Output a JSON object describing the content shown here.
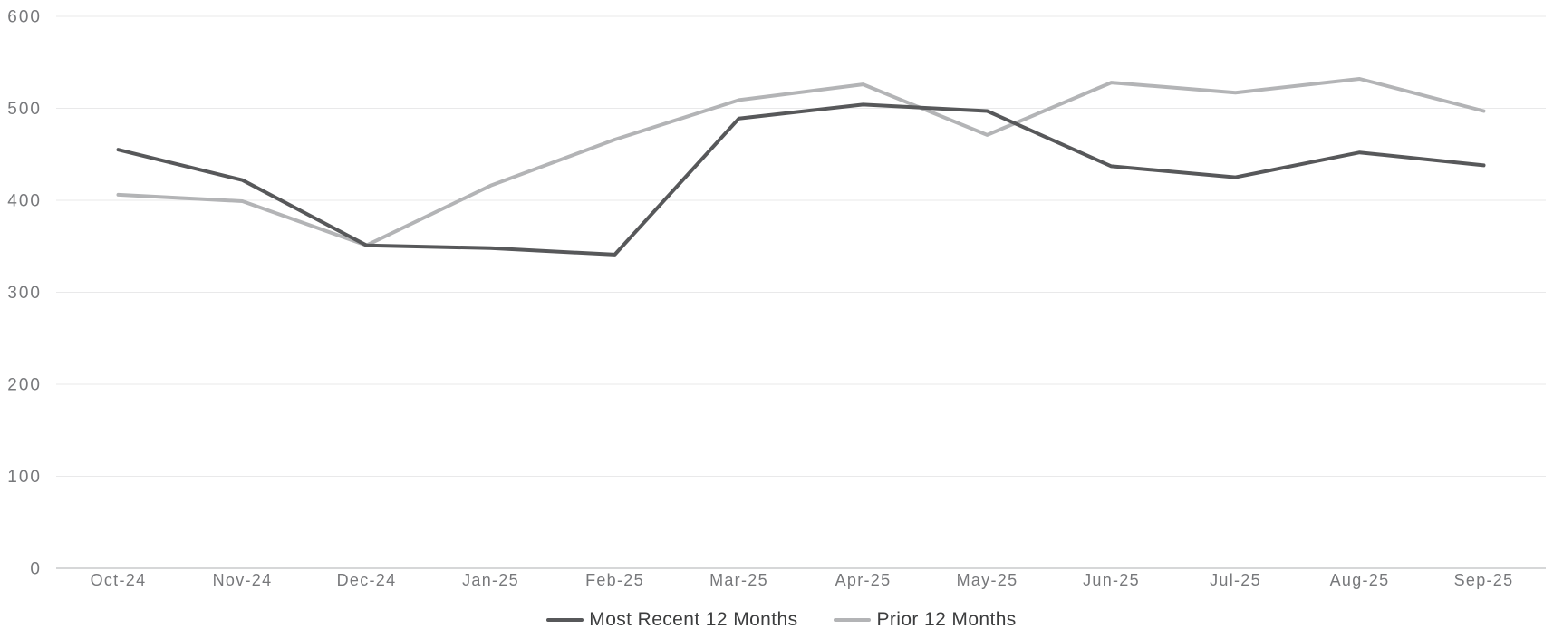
{
  "chart_data": {
    "type": "line",
    "title": "",
    "xlabel": "",
    "ylabel": "",
    "categories": [
      "Oct-24",
      "Nov-24",
      "Dec-24",
      "Jan-25",
      "Feb-25",
      "Mar-25",
      "Apr-25",
      "May-25",
      "Jun-25",
      "Jul-25",
      "Aug-25",
      "Sep-25"
    ],
    "series": [
      {
        "name": "Most Recent 12 Months",
        "color": "#57585a",
        "values": [
          455,
          422,
          351,
          348,
          341,
          489,
          504,
          497,
          437,
          425,
          452,
          438
        ]
      },
      {
        "name": "Prior 12 Months",
        "color": "#b3b4b6",
        "values": [
          406,
          399,
          351,
          416,
          466,
          509,
          526,
          471,
          528,
          517,
          532,
          497
        ]
      }
    ],
    "ylim": [
      0,
      600
    ],
    "ytick_step": 100,
    "ytick_labels": [
      "0",
      "100",
      "200",
      "300",
      "400",
      "500",
      "600"
    ],
    "grid": "horizontal",
    "legend_position": "bottom-center",
    "grid_color": "#e9e9ea",
    "axis_line_color": "#c9cacc",
    "tick_label_color": "#77787b"
  }
}
